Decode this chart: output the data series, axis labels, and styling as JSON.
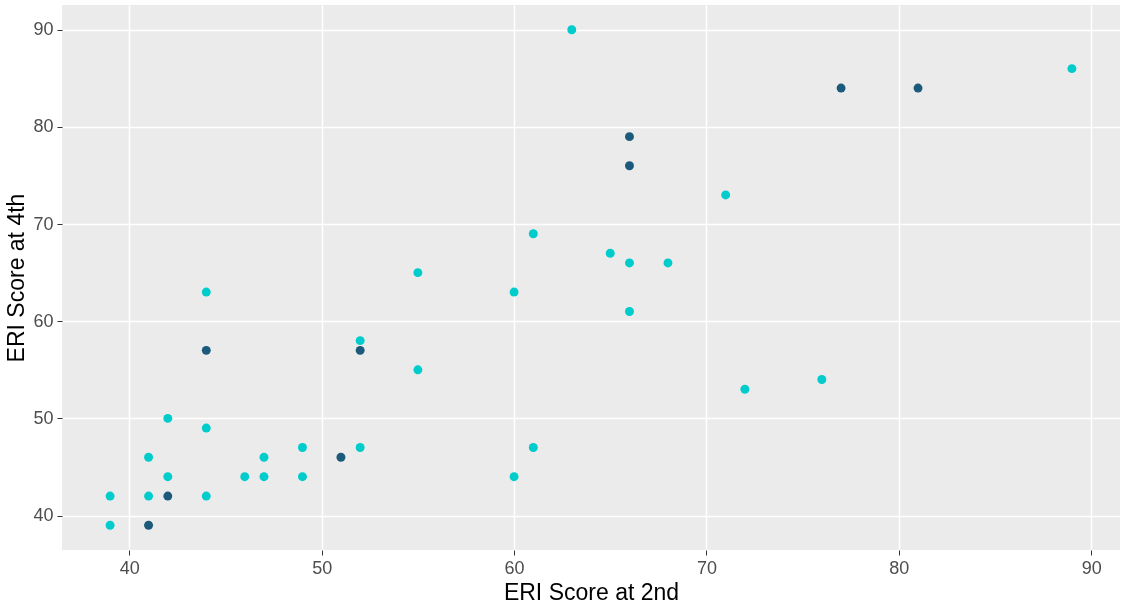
{
  "chart_data": {
    "type": "scatter",
    "xlabel": "ERI Score at 2nd",
    "ylabel": "ERI Score at 4th",
    "xlim": [
      36.5,
      91.5
    ],
    "ylim": [
      36.45,
      92.55
    ],
    "xticks": [
      40,
      50,
      60,
      70,
      80,
      90
    ],
    "yticks": [
      40,
      50,
      60,
      70,
      80,
      90
    ],
    "grid": true,
    "legend": false,
    "marker": "circle",
    "series": [
      {
        "color": "#00cccc",
        "x": [
          63,
          89,
          71,
          61,
          65,
          66,
          68,
          55,
          44,
          60,
          66,
          52,
          55,
          76,
          72,
          42,
          44,
          49,
          52,
          61,
          41,
          47,
          42,
          46,
          47,
          49,
          60,
          39,
          41,
          44,
          39
        ],
        "values": [
          90,
          86,
          73,
          69,
          67,
          66,
          66,
          65,
          63,
          63,
          61,
          58,
          55,
          54,
          53,
          50,
          49,
          47,
          47,
          47,
          46,
          46,
          44,
          44,
          44,
          44,
          44,
          42,
          42,
          42,
          39
        ]
      },
      {
        "color": "#1b5a7b",
        "x": [
          77,
          81,
          66,
          66,
          44,
          52,
          51,
          42,
          41
        ],
        "values": [
          84,
          84,
          79,
          76,
          57,
          57,
          46,
          42,
          39
        ]
      }
    ]
  }
}
